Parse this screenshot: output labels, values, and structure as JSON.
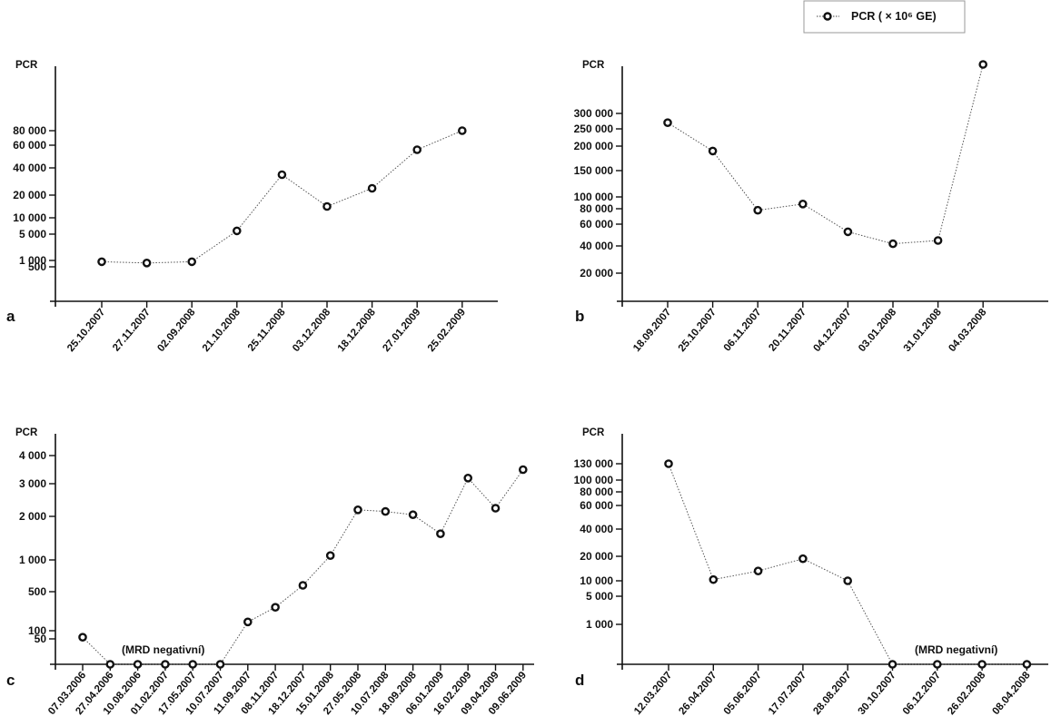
{
  "legend": {
    "label": "PCR ( × 10⁶ GE)",
    "marker_icon": "open-circle-marker",
    "line_style": "dotted"
  },
  "chart_data": [
    {
      "type": "line",
      "panel_label": "a",
      "ylabel": "PCR",
      "ytick_labels": [
        "500",
        "1 000",
        "5 000",
        "10 000",
        "20 000",
        "40 000",
        "60 000",
        "80 000"
      ],
      "categories": [
        "25.10.2007",
        "27.11.2007",
        "02.09.2008",
        "21.10.2008",
        "25.11.2008",
        "03.12.2008",
        "18.12.2008",
        "27.01.2009",
        "25.02.2009"
      ],
      "series": [
        {
          "values": [
            900,
            800,
            900,
            6000,
            35000,
            15000,
            25000,
            56000,
            80000
          ]
        }
      ],
      "annotations": []
    },
    {
      "type": "line",
      "panel_label": "b",
      "ylabel": "PCR",
      "ytick_labels": [
        "20 000",
        "40 000",
        "60 000",
        "80 000",
        "100 000",
        "150 000",
        "200 000",
        "250 000",
        "300 000"
      ],
      "categories": [
        "18.09.2007",
        "25.10.2007",
        "06.11.2007",
        "20.11.2007",
        "04.12.2007",
        "03.01.2008",
        "31.01.2008",
        "04.03.2008"
      ],
      "series": [
        {
          "values": [
            270000,
            190000,
            78000,
            88000,
            53000,
            42000,
            45000,
            450000
          ]
        }
      ],
      "annotations": []
    },
    {
      "type": "line",
      "panel_label": "c",
      "ylabel": "PCR",
      "ytick_labels": [
        "50",
        "100",
        "500",
        "1 000",
        "2 000",
        "3 000",
        "4 000"
      ],
      "categories": [
        "07.03.2006",
        "27.04.2006",
        "10.08.2006",
        "01.02.2007",
        "17.05.2007",
        "10.07.2007",
        "11.09.2007",
        "08.11.2007",
        "18.12.2007",
        "15.01.2008",
        "27.05.2008",
        "10.07.2008",
        "18.09.2008",
        "06.01.2009",
        "16.02.2009",
        "09.04.2009",
        "09.06.2009"
      ],
      "series": [
        {
          "values": [
            60,
            0,
            0,
            0,
            0,
            0,
            190,
            340,
            600,
            1100,
            2200,
            2150,
            2050,
            1600,
            3200,
            2250,
            3500
          ]
        }
      ],
      "annotations": [
        "(MRD negativní)"
      ]
    },
    {
      "type": "line",
      "panel_label": "d",
      "ylabel": "PCR",
      "ytick_labels": [
        "1 000",
        "5 000",
        "10 000",
        "20 000",
        "40 000",
        "60 000",
        "80 000",
        "100 000",
        "130 000"
      ],
      "categories": [
        "12.03.2007",
        "26.04.2007",
        "05.06.2007",
        "17.07.2007",
        "28.08.2007",
        "30.10.2007",
        "06.12.2007",
        "26.02.2008",
        "08.04.2008"
      ],
      "series": [
        {
          "values": [
            130000,
            10500,
            14000,
            19000,
            10000,
            0,
            0,
            0,
            0
          ]
        }
      ],
      "annotations": [
        "(MRD negativní)"
      ]
    }
  ]
}
